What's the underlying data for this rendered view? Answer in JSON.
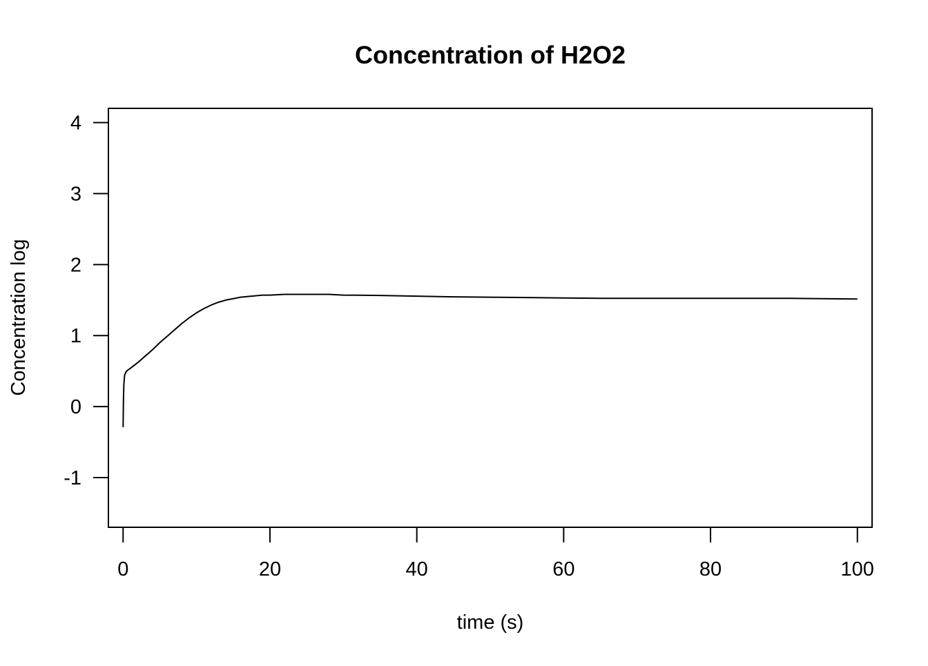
{
  "chart_data": {
    "type": "line",
    "title": "Concentration of H2O2",
    "xlabel": "time (s)",
    "ylabel": "Concentration log",
    "xlim": [
      -2,
      102
    ],
    "ylim": [
      -1.7,
      4.2
    ],
    "x_ticks": [
      0,
      20,
      40,
      60,
      80,
      100
    ],
    "y_ticks": [
      -1,
      0,
      1,
      2,
      3,
      4
    ],
    "x_tick_labels": [
      "0",
      "20",
      "40",
      "60",
      "80",
      "100"
    ],
    "y_tick_labels": [
      "-1",
      "0",
      "1",
      "2",
      "3",
      "4"
    ],
    "grid": false,
    "legend": "none",
    "line_color": "#000000",
    "series": [
      {
        "x": [
          0,
          0.05,
          0.1,
          0.2,
          0.4,
          0.6,
          1,
          2,
          3,
          4,
          5,
          6,
          7,
          8,
          9,
          10,
          11,
          12,
          13,
          14,
          15,
          16,
          17,
          18,
          19,
          20,
          22,
          24,
          26,
          28,
          30,
          35,
          40,
          45,
          50,
          55,
          60,
          65,
          70,
          75,
          80,
          85,
          90,
          95,
          100
        ],
        "y": [
          -0.29,
          0.1,
          0.3,
          0.44,
          0.49,
          0.51,
          0.54,
          0.62,
          0.71,
          0.8,
          0.9,
          0.99,
          1.08,
          1.17,
          1.25,
          1.32,
          1.38,
          1.43,
          1.47,
          1.5,
          1.52,
          1.54,
          1.55,
          1.56,
          1.57,
          1.57,
          1.58,
          1.58,
          1.58,
          1.58,
          1.57,
          1.565,
          1.555,
          1.545,
          1.54,
          1.535,
          1.53,
          1.525,
          1.525,
          1.525,
          1.525,
          1.525,
          1.525,
          1.52,
          1.515
        ]
      }
    ]
  }
}
